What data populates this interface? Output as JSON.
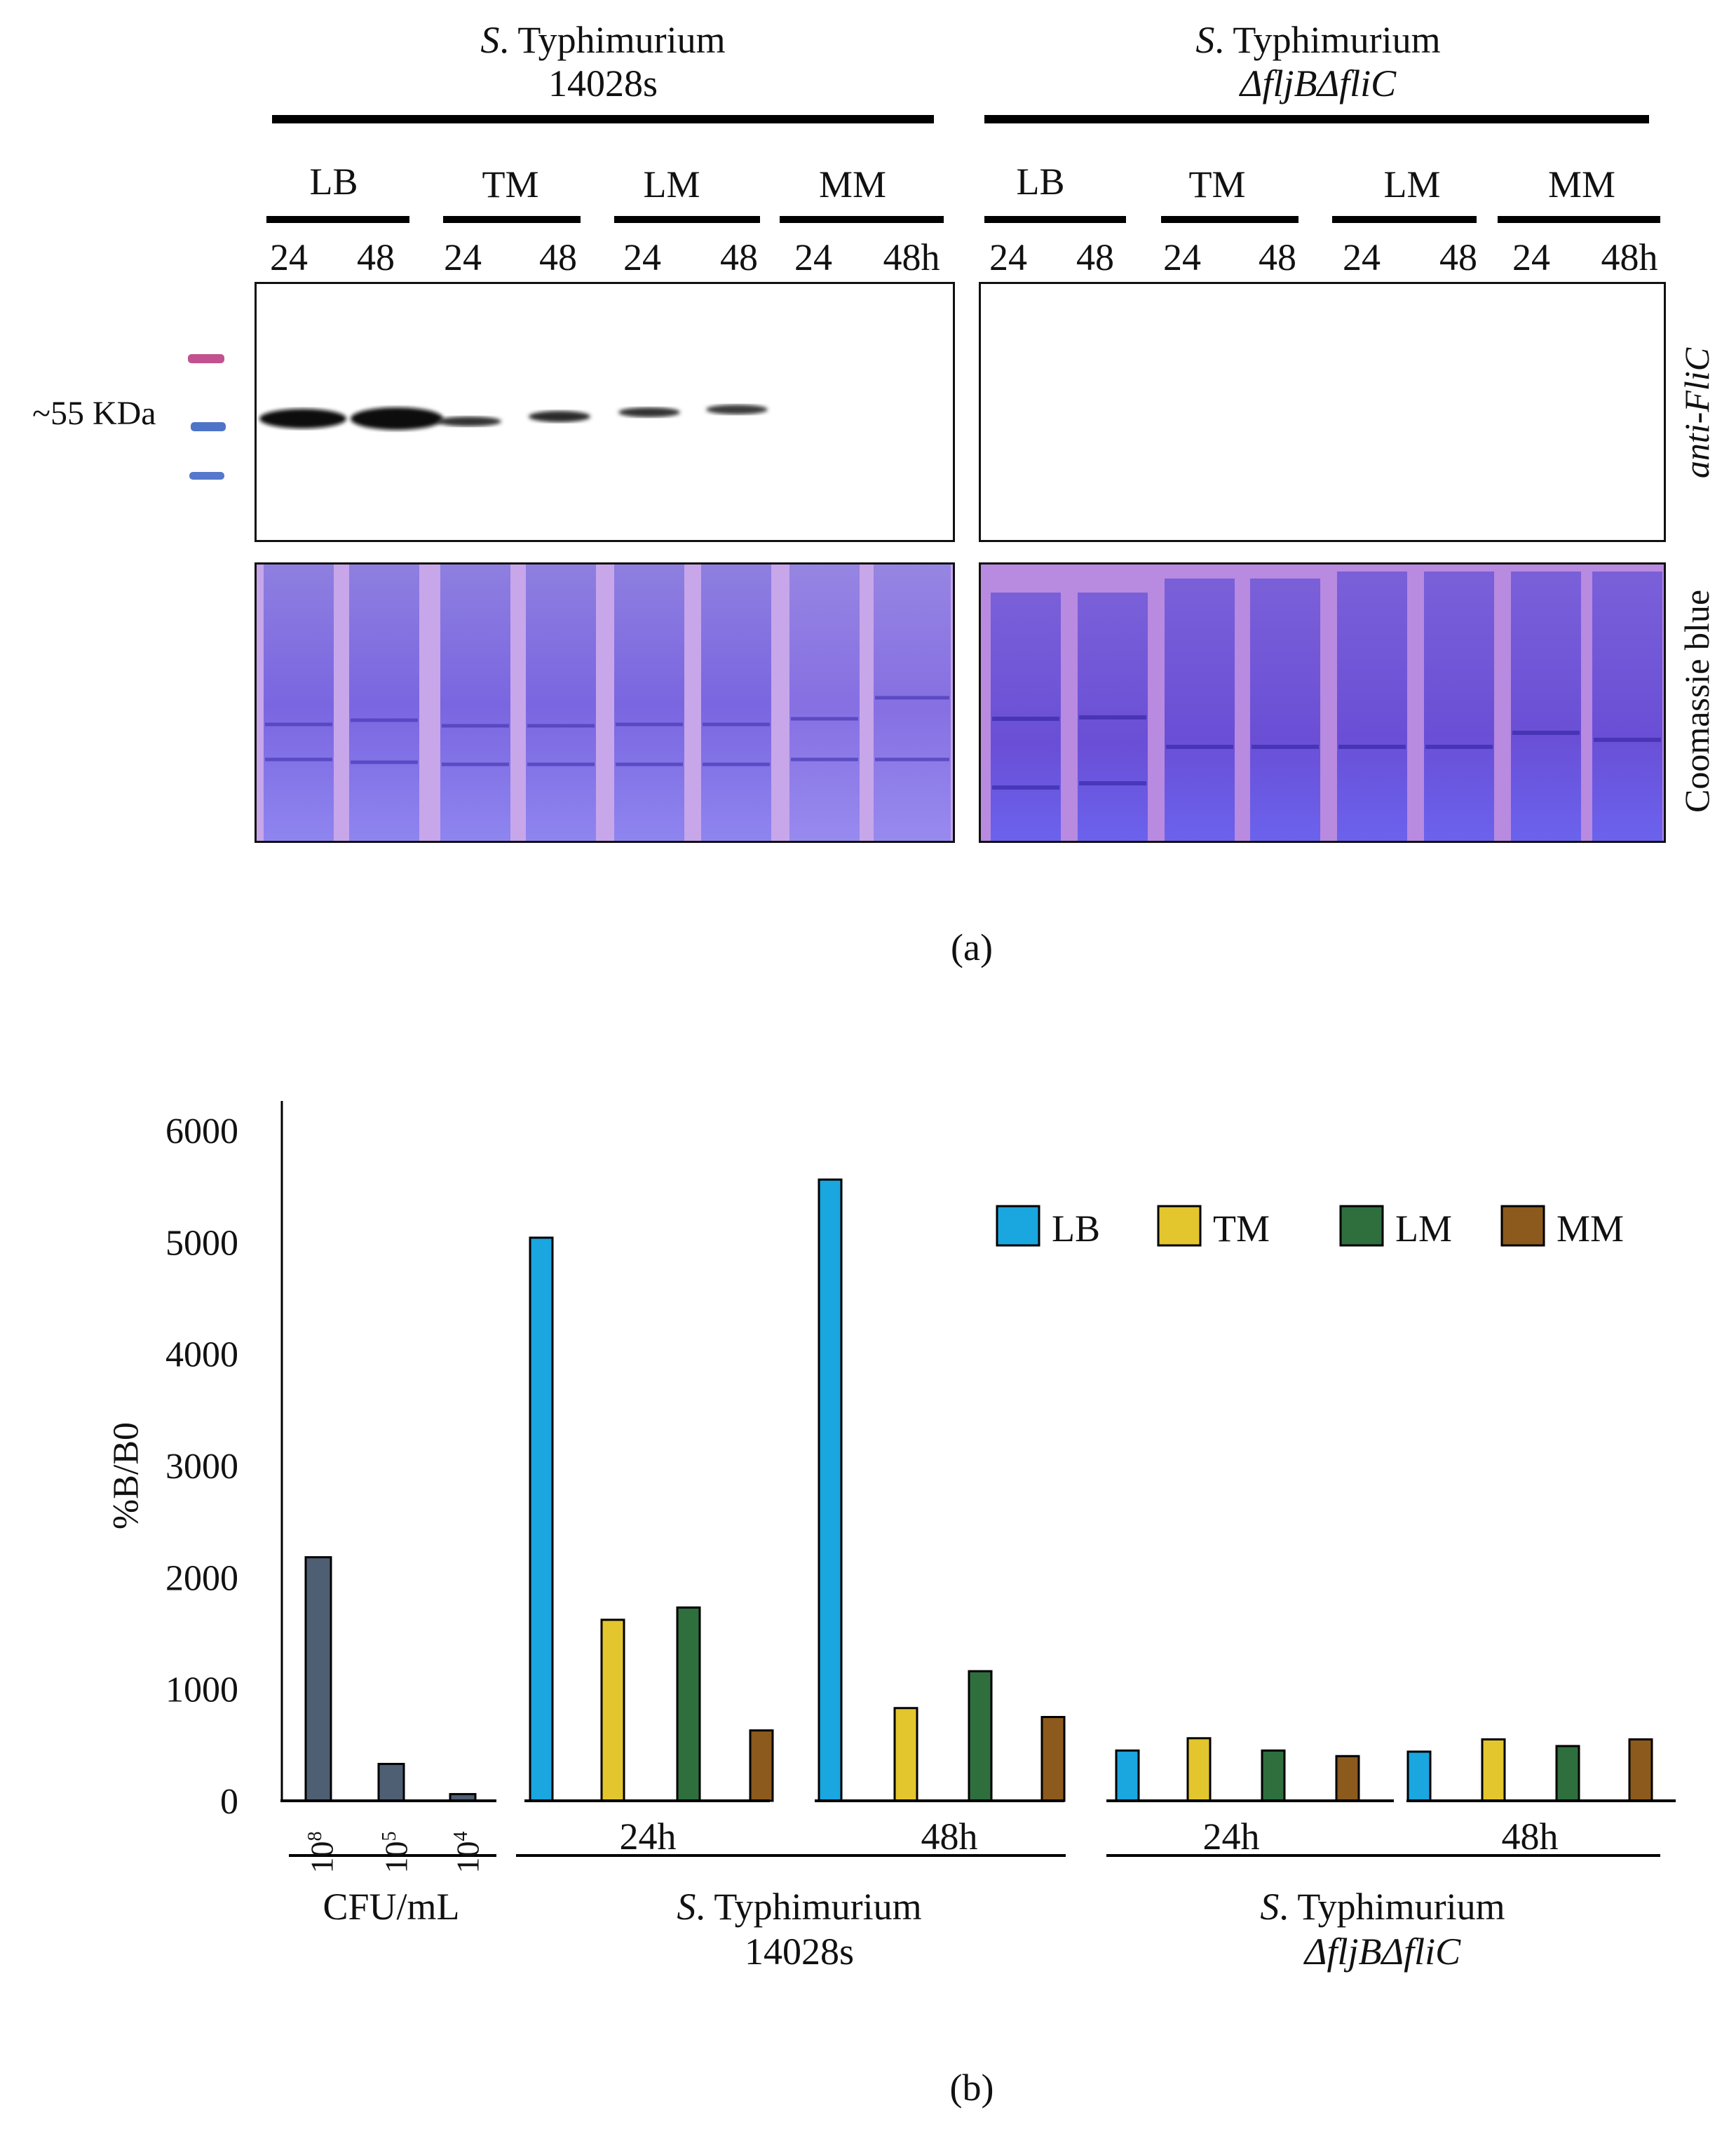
{
  "panel_a": {
    "strain1": {
      "italic": "S",
      "rest": ". Typhimurium",
      "line2": "14028s"
    },
    "strain2": {
      "italic": "S",
      "rest": ". Typhimurium",
      "line2": "ΔfljBΔfliC"
    },
    "media": [
      "LB",
      "TM",
      "LM",
      "MM"
    ],
    "times": [
      "24",
      "48",
      "24",
      "48",
      "24",
      "48",
      "24",
      "48h"
    ],
    "marker_label": "~55 KDa",
    "blot_label": "anti-FliC",
    "gel_label": "Coomassie blue",
    "caption": "(a)"
  },
  "panel_b": {
    "caption": "(b)",
    "group_labels": {
      "cfu": "CFU/mL",
      "time_24": "24h",
      "time_48": "48h",
      "strain1_italic": "S",
      "strain1_rest": ". Typhimurium",
      "strain1_line2": "14028s",
      "strain2_italic": "S",
      "strain2_rest": ". Typhimurium",
      "strain2_line2": "ΔfljBΔfliC"
    },
    "cfu_ticks": [
      {
        "base": "10",
        "exp": "8"
      },
      {
        "base": "10",
        "exp": "5"
      },
      {
        "base": "10",
        "exp": "4"
      }
    ]
  },
  "chart_data": {
    "type": "bar",
    "title": "",
    "xlabel": "",
    "ylabel": "%B/B0",
    "ylim": [
      0,
      6000
    ],
    "yticks": [
      0,
      1000,
      2000,
      3000,
      4000,
      5000,
      6000
    ],
    "legend": {
      "position": "top-right",
      "entries": [
        "LB",
        "TM",
        "LM",
        "MM"
      ]
    },
    "colors": {
      "LB": "#1AA6DF",
      "TM": "#E3C62E",
      "LM": "#2F6F3E",
      "MM": "#8C5A1C",
      "CFU": "#4E5F73"
    },
    "cfu_standards": {
      "categories": [
        "10^8",
        "10^5",
        "10^4"
      ],
      "values": [
        2180,
        330,
        60
      ]
    },
    "groups": [
      {
        "strain": "S. Typhimurium 14028s",
        "time": "24h",
        "series": {
          "LB": 5040,
          "TM": 1620,
          "LM": 1730,
          "MM": 630
        }
      },
      {
        "strain": "S. Typhimurium 14028s",
        "time": "48h",
        "series": {
          "LB": 5560,
          "TM": 830,
          "LM": 1160,
          "MM": 750
        }
      },
      {
        "strain": "S. Typhimurium ΔfljBΔfliC",
        "time": "24h",
        "series": {
          "LB": 450,
          "TM": 560,
          "LM": 450,
          "MM": 400
        }
      },
      {
        "strain": "S. Typhimurium ΔfljBΔfliC",
        "time": "48h",
        "series": {
          "LB": 440,
          "TM": 550,
          "LM": 490,
          "MM": 550
        }
      }
    ]
  }
}
